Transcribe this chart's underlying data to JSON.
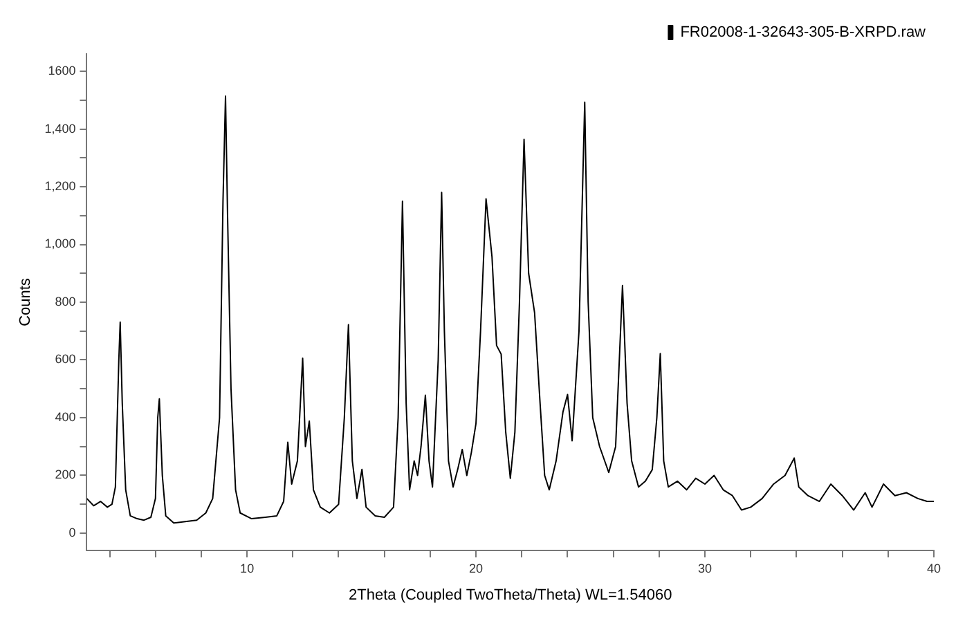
{
  "chart_data": {
    "type": "line",
    "xlabel": "2Theta (Coupled TwoTheta/Theta) WL=1.54060",
    "ylabel": "Counts",
    "legend": "top right",
    "grid": false,
    "marker": "none",
    "line_style": "solid",
    "xlim": [
      3,
      40
    ],
    "xticks": [
      {
        "value": 4,
        "label": null
      },
      {
        "value": 6,
        "label": null
      },
      {
        "value": 8,
        "label": null
      },
      10,
      {
        "value": 12,
        "label": null
      },
      {
        "value": 14,
        "label": null
      },
      {
        "value": 16,
        "label": null
      },
      {
        "value": 18,
        "label": null
      },
      20,
      {
        "value": 22,
        "label": null
      },
      {
        "value": 24,
        "label": null
      },
      {
        "value": 26,
        "label": null
      },
      {
        "value": 28,
        "label": null
      },
      30,
      {
        "value": 32,
        "label": null
      },
      {
        "value": 34,
        "label": null
      },
      {
        "value": 36,
        "label": null
      },
      {
        "value": 38,
        "label": null
      },
      40
    ],
    "ylim": [
      -60,
      1660
    ],
    "yticks": [
      0,
      {
        "value": 100,
        "label": null
      },
      200,
      {
        "value": 300,
        "label": null
      },
      400,
      {
        "value": 500,
        "label": null
      },
      600,
      {
        "value": 700,
        "label": null
      },
      800,
      {
        "value": 900,
        "label": null
      },
      {
        "value": 1000,
        "label": "1,000"
      },
      {
        "value": 1100,
        "label": null
      },
      {
        "value": 1200,
        "label": "1,200"
      },
      {
        "value": 1300,
        "label": null
      },
      {
        "value": 1400,
        "label": "1,400"
      },
      {
        "value": 1500,
        "label": null
      },
      1600
    ],
    "series": [
      {
        "name": "FR02008-1-32643-305-B-XRPD.raw",
        "color": "#000000",
        "x": [
          3.0,
          3.3,
          3.6,
          3.9,
          4.1,
          4.25,
          4.4,
          4.46,
          4.55,
          4.7,
          4.9,
          5.2,
          5.5,
          5.8,
          6.0,
          6.1,
          6.17,
          6.3,
          6.45,
          6.8,
          7.3,
          7.8,
          8.2,
          8.5,
          8.8,
          8.95,
          9.06,
          9.15,
          9.3,
          9.5,
          9.7,
          10.2,
          10.8,
          11.3,
          11.6,
          11.78,
          11.95,
          12.2,
          12.43,
          12.55,
          12.72,
          12.9,
          13.2,
          13.6,
          14.0,
          14.25,
          14.43,
          14.6,
          14.8,
          15.02,
          15.2,
          15.6,
          16.0,
          16.4,
          16.6,
          16.79,
          16.95,
          17.1,
          17.3,
          17.45,
          17.6,
          17.79,
          17.95,
          18.1,
          18.35,
          18.5,
          18.62,
          18.8,
          19.0,
          19.2,
          19.4,
          19.6,
          19.8,
          20.0,
          20.2,
          20.44,
          20.7,
          20.9,
          21.1,
          21.3,
          21.5,
          21.7,
          21.9,
          22.1,
          22.3,
          22.56,
          22.8,
          23.0,
          23.2,
          23.5,
          23.8,
          24.0,
          24.2,
          24.5,
          24.75,
          24.9,
          25.1,
          25.4,
          25.8,
          26.1,
          26.4,
          26.6,
          26.8,
          27.1,
          27.4,
          27.7,
          27.9,
          28.05,
          28.2,
          28.4,
          28.8,
          29.2,
          29.6,
          30.0,
          30.4,
          30.8,
          31.2,
          31.6,
          32.0,
          32.5,
          33.0,
          33.5,
          33.9,
          34.1,
          34.5,
          35.0,
          35.5,
          36.0,
          36.5,
          37.0,
          37.3,
          37.8,
          38.3,
          38.8,
          39.3,
          39.7,
          40.0
        ],
        "values": [
          120,
          95,
          110,
          90,
          100,
          160,
          600,
          731,
          450,
          150,
          60,
          50,
          45,
          55,
          120,
          400,
          465,
          200,
          60,
          35,
          40,
          45,
          70,
          120,
          400,
          1150,
          1514,
          1100,
          500,
          150,
          70,
          50,
          55,
          60,
          110,
          315,
          170,
          250,
          606,
          300,
          388,
          150,
          90,
          70,
          100,
          400,
          722,
          250,
          120,
          221,
          90,
          60,
          55,
          90,
          400,
          1150,
          450,
          150,
          250,
          200,
          300,
          478,
          250,
          160,
          600,
          1180,
          700,
          250,
          160,
          220,
          290,
          200,
          280,
          380,
          700,
          1158,
          957,
          650,
          620,
          350,
          190,
          350,
          800,
          1364,
          900,
          764,
          450,
          200,
          150,
          250,
          420,
          480,
          320,
          700,
          1493,
          800,
          400,
          300,
          210,
          300,
          858,
          450,
          250,
          160,
          180,
          220,
          400,
          622,
          250,
          160,
          180,
          150,
          190,
          170,
          200,
          150,
          130,
          80,
          90,
          120,
          170,
          200,
          260,
          160,
          130,
          110,
          170,
          130,
          80,
          140,
          90,
          170,
          130,
          140,
          120,
          110,
          110
        ]
      }
    ]
  }
}
